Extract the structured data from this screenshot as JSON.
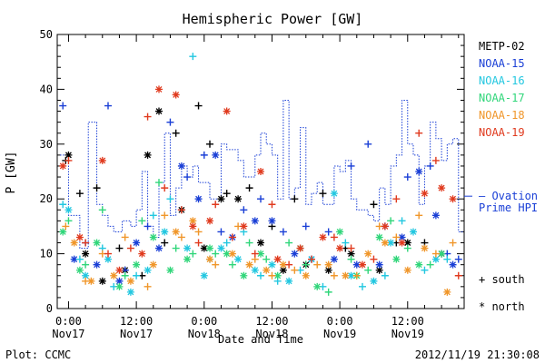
{
  "chart_data": {
    "type": "scatter",
    "title": "Hemispheric Power [GW]",
    "ylabel": "P [GW]",
    "xlabel": "Date and Time",
    "ylim": [
      0,
      50
    ],
    "yticks": [
      0,
      10,
      20,
      30,
      40,
      50
    ],
    "x_unit": "hours since 2012-11-17 00:00 UT",
    "xlim": [
      -2,
      70
    ],
    "xticks": [
      {
        "x": 0,
        "line1": "0:00",
        "line2": "Nov17"
      },
      {
        "x": 12,
        "line1": "12:00",
        "line2": "Nov17"
      },
      {
        "x": 24,
        "line1": "0:00",
        "line2": "Nov18"
      },
      {
        "x": 36,
        "line1": "12:00",
        "line2": "Nov18"
      },
      {
        "x": 48,
        "line1": "0:00",
        "line2": "Nov19"
      },
      {
        "x": 60,
        "line1": "12:00",
        "line2": "Nov19"
      }
    ],
    "legend": {
      "placement": "right",
      "series": [
        {
          "name": "METP-02",
          "color": "#000000"
        },
        {
          "name": "NOAA-15",
          "color": "#1a3fd6"
        },
        {
          "name": "NOAA-16",
          "color": "#22c7e0"
        },
        {
          "name": "NOAA-17",
          "color": "#30d67a"
        },
        {
          "name": "NOAA-18",
          "color": "#f0962a"
        },
        {
          "name": "NOAA-19",
          "color": "#e03a1e"
        }
      ],
      "ovation_label": "— Ovation",
      "ovation_label2": "Prime HPI",
      "south_label": "+ south",
      "north_label": "* north"
    },
    "ovation_hpi": {
      "color": "#1a3fd6",
      "x": [
        -1.5,
        0,
        2,
        3.5,
        5,
        6,
        7,
        8,
        9.5,
        11,
        12,
        13,
        14,
        15,
        16,
        17,
        18,
        19,
        20,
        21,
        22,
        23,
        24,
        25,
        26,
        27,
        28,
        29,
        30,
        31,
        32,
        33,
        34,
        35,
        36,
        37,
        38,
        39,
        40,
        41,
        42,
        43,
        44,
        45,
        46,
        47,
        48,
        49,
        50,
        51,
        52,
        53,
        54,
        55,
        56,
        57,
        58,
        59,
        60,
        61,
        62,
        63,
        64,
        65,
        66,
        67,
        68,
        69
      ],
      "y": [
        28,
        17,
        11,
        34,
        19,
        17,
        15,
        14,
        16,
        15,
        18,
        25,
        15,
        13,
        23,
        32,
        17,
        22,
        26,
        24,
        26,
        23,
        23,
        20,
        20,
        30,
        29,
        29,
        27,
        24,
        24,
        28,
        32,
        30,
        28,
        20,
        38,
        20,
        22,
        33,
        19,
        21,
        23,
        19,
        19,
        26,
        25,
        27,
        20,
        18,
        18,
        17,
        16,
        22,
        19,
        26,
        28,
        38,
        30,
        28,
        19,
        26,
        34,
        31,
        27,
        30,
        31,
        14
      ]
    },
    "series_points": [
      {
        "name": "METP-02",
        "color": "#000000",
        "marker": "+",
        "points": [
          [
            -0.5,
            27
          ],
          [
            2,
            21
          ],
          [
            5,
            22
          ],
          [
            9,
            11
          ],
          [
            13,
            6
          ],
          [
            17,
            12
          ],
          [
            19,
            32
          ],
          [
            23,
            37
          ],
          [
            25,
            30
          ],
          [
            28,
            21
          ],
          [
            32,
            22
          ],
          [
            36,
            15
          ],
          [
            40,
            20
          ],
          [
            45,
            21
          ],
          [
            49,
            11
          ],
          [
            54,
            19
          ],
          [
            58,
            12
          ],
          [
            63,
            12
          ]
        ]
      },
      {
        "name": "METP-02",
        "color": "#000000",
        "marker": "*",
        "points": [
          [
            0,
            28
          ],
          [
            3,
            10
          ],
          [
            6,
            5
          ],
          [
            10,
            7
          ],
          [
            14,
            28
          ],
          [
            16,
            36
          ],
          [
            20,
            18
          ],
          [
            24,
            11
          ],
          [
            27,
            20
          ],
          [
            30,
            20
          ],
          [
            34,
            12
          ],
          [
            38,
            7
          ],
          [
            42,
            8
          ],
          [
            46,
            7
          ],
          [
            50,
            10
          ],
          [
            55,
            7
          ],
          [
            60,
            12
          ],
          [
            66,
            10
          ]
        ]
      },
      {
        "name": "NOAA-15",
        "color": "#1a3fd6",
        "marker": "+",
        "points": [
          [
            -1,
            37
          ],
          [
            3,
            12
          ],
          [
            7,
            37
          ],
          [
            10,
            7
          ],
          [
            14,
            15
          ],
          [
            18,
            34
          ],
          [
            21,
            24
          ],
          [
            24,
            28
          ],
          [
            27,
            14
          ],
          [
            31,
            18
          ],
          [
            34,
            20
          ],
          [
            38,
            14
          ],
          [
            42,
            15
          ],
          [
            46,
            14
          ],
          [
            50,
            26
          ],
          [
            53,
            30
          ],
          [
            56,
            15
          ],
          [
            60,
            24
          ],
          [
            64,
            26
          ],
          [
            67,
            10
          ],
          [
            69,
            9
          ]
        ]
      },
      {
        "name": "NOAA-15",
        "color": "#1a3fd6",
        "marker": "*",
        "points": [
          [
            1,
            9
          ],
          [
            5,
            8
          ],
          [
            9,
            5
          ],
          [
            12,
            12
          ],
          [
            16,
            11
          ],
          [
            20,
            26
          ],
          [
            23,
            20
          ],
          [
            26,
            28
          ],
          [
            29,
            13
          ],
          [
            33,
            16
          ],
          [
            36,
            16
          ],
          [
            40,
            10
          ],
          [
            43,
            9
          ],
          [
            47,
            9
          ],
          [
            51,
            8
          ],
          [
            55,
            8
          ],
          [
            59,
            13
          ],
          [
            62,
            25
          ],
          [
            65,
            17
          ],
          [
            68,
            8
          ]
        ]
      },
      {
        "name": "NOAA-16",
        "color": "#22c7e0",
        "marker": "+",
        "points": [
          [
            -1,
            19
          ],
          [
            2,
            9
          ],
          [
            6,
            11
          ],
          [
            8,
            4
          ],
          [
            12,
            6
          ],
          [
            15,
            17
          ],
          [
            18,
            20
          ],
          [
            22,
            46
          ],
          [
            25,
            9
          ],
          [
            28,
            12
          ],
          [
            31,
            14
          ],
          [
            34,
            6
          ],
          [
            37,
            5
          ],
          [
            41,
            7
          ],
          [
            45,
            4
          ],
          [
            49,
            12
          ],
          [
            52,
            4
          ],
          [
            56,
            6
          ],
          [
            59,
            16
          ],
          [
            63,
            7
          ],
          [
            67,
            9
          ]
        ]
      },
      {
        "name": "NOAA-16",
        "color": "#22c7e0",
        "marker": "*",
        "points": [
          [
            0,
            18
          ],
          [
            3,
            6
          ],
          [
            7,
            9
          ],
          [
            11,
            3
          ],
          [
            14,
            7
          ],
          [
            17,
            14
          ],
          [
            21,
            11
          ],
          [
            24,
            6
          ],
          [
            27,
            11
          ],
          [
            30,
            9
          ],
          [
            33,
            7
          ],
          [
            36,
            8
          ],
          [
            39,
            5
          ],
          [
            43,
            9
          ],
          [
            47,
            21
          ],
          [
            50,
            6
          ],
          [
            54,
            5
          ],
          [
            57,
            12
          ],
          [
            61,
            14
          ],
          [
            65,
            9
          ]
        ]
      },
      {
        "name": "NOAA-17",
        "color": "#30d67a",
        "marker": "+",
        "points": [
          [
            0,
            16
          ],
          [
            3,
            8
          ],
          [
            6,
            18
          ],
          [
            10,
            6
          ],
          [
            13,
            16
          ],
          [
            16,
            23
          ],
          [
            19,
            11
          ],
          [
            22,
            10
          ],
          [
            26,
            10
          ],
          [
            29,
            8
          ],
          [
            32,
            12
          ],
          [
            35,
            9
          ],
          [
            39,
            12
          ],
          [
            42,
            8
          ],
          [
            46,
            3
          ],
          [
            50,
            9
          ],
          [
            53,
            7
          ],
          [
            57,
            16
          ],
          [
            60,
            11
          ],
          [
            64,
            8
          ]
        ]
      },
      {
        "name": "NOAA-17",
        "color": "#30d67a",
        "marker": "*",
        "points": [
          [
            -1,
            14
          ],
          [
            2,
            7
          ],
          [
            5,
            12
          ],
          [
            9,
            4
          ],
          [
            12,
            8
          ],
          [
            15,
            13
          ],
          [
            18,
            7
          ],
          [
            21,
            9
          ],
          [
            25,
            11
          ],
          [
            28,
            10
          ],
          [
            31,
            6
          ],
          [
            34,
            10
          ],
          [
            37,
            6
          ],
          [
            41,
            11
          ],
          [
            44,
            4
          ],
          [
            48,
            14
          ],
          [
            51,
            6
          ],
          [
            55,
            13
          ],
          [
            58,
            9
          ],
          [
            62,
            8
          ],
          [
            66,
            10
          ]
        ]
      },
      {
        "name": "NOAA-18",
        "color": "#f0962a",
        "marker": "+",
        "points": [
          [
            -0.5,
            15
          ],
          [
            3,
            5
          ],
          [
            6,
            10
          ],
          [
            10,
            13
          ],
          [
            14,
            4
          ],
          [
            17,
            17
          ],
          [
            20,
            13
          ],
          [
            23,
            14
          ],
          [
            26,
            8
          ],
          [
            30,
            15
          ],
          [
            33,
            9
          ],
          [
            36,
            6
          ],
          [
            40,
            7
          ],
          [
            44,
            8
          ],
          [
            47,
            6
          ],
          [
            51,
            6
          ],
          [
            55,
            15
          ],
          [
            58,
            13
          ],
          [
            62,
            17
          ],
          [
            65,
            10
          ],
          [
            68,
            12
          ]
        ]
      },
      {
        "name": "NOAA-18",
        "color": "#f0962a",
        "marker": "*",
        "points": [
          [
            1,
            12
          ],
          [
            4,
            5
          ],
          [
            8,
            6
          ],
          [
            11,
            5
          ],
          [
            15,
            8
          ],
          [
            19,
            14
          ],
          [
            22,
            16
          ],
          [
            25,
            9
          ],
          [
            29,
            10
          ],
          [
            32,
            8
          ],
          [
            35,
            7
          ],
          [
            38,
            8
          ],
          [
            42,
            6
          ],
          [
            46,
            8
          ],
          [
            49,
            6
          ],
          [
            53,
            10
          ],
          [
            56,
            12
          ],
          [
            60,
            7
          ],
          [
            63,
            11
          ],
          [
            67,
            3
          ]
        ]
      },
      {
        "name": "NOAA-19",
        "color": "#e03a1e",
        "marker": "+",
        "points": [
          [
            0,
            27
          ],
          [
            3,
            12
          ],
          [
            7,
            10
          ],
          [
            11,
            11
          ],
          [
            14,
            35
          ],
          [
            17,
            22
          ],
          [
            20,
            18
          ],
          [
            23,
            12
          ],
          [
            26,
            19
          ],
          [
            29,
            13
          ],
          [
            33,
            10
          ],
          [
            36,
            19
          ],
          [
            39,
            8
          ],
          [
            43,
            9
          ],
          [
            47,
            13
          ],
          [
            50,
            11
          ],
          [
            54,
            9
          ],
          [
            58,
            20
          ],
          [
            62,
            32
          ],
          [
            65,
            27
          ],
          [
            69,
            6
          ]
        ]
      },
      {
        "name": "NOAA-19",
        "color": "#e03a1e",
        "marker": "*",
        "points": [
          [
            -1,
            26
          ],
          [
            2,
            13
          ],
          [
            6,
            27
          ],
          [
            9,
            7
          ],
          [
            13,
            10
          ],
          [
            16,
            40
          ],
          [
            19,
            39
          ],
          [
            22,
            15
          ],
          [
            25,
            16
          ],
          [
            28,
            36
          ],
          [
            31,
            15
          ],
          [
            34,
            25
          ],
          [
            37,
            9
          ],
          [
            41,
            11
          ],
          [
            45,
            13
          ],
          [
            48,
            11
          ],
          [
            52,
            8
          ],
          [
            56,
            15
          ],
          [
            59,
            12
          ],
          [
            63,
            21
          ],
          [
            66,
            22
          ],
          [
            68,
            20
          ]
        ]
      }
    ]
  },
  "footer": {
    "plot_credit": "Plot: CCMC",
    "timestamp": "2012/11/19 21:30:08"
  }
}
